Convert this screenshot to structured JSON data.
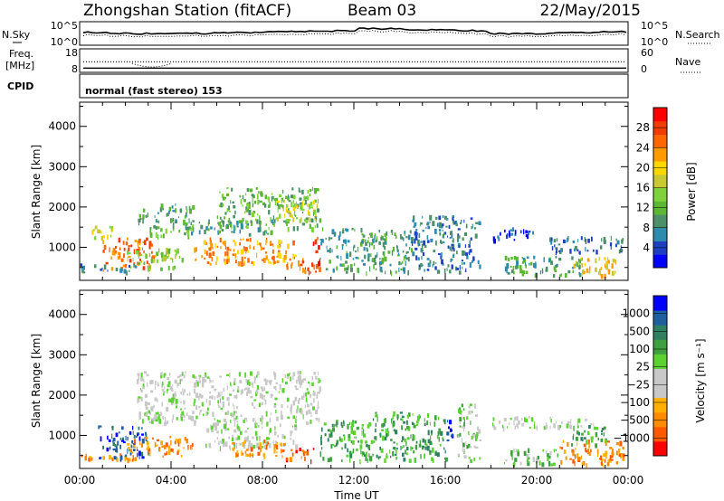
{
  "header": {
    "station_title": "Zhongshan Station (fitACF)",
    "beam": "Beam 03",
    "date": "22/May/2015"
  },
  "strip": {
    "nsky_label": "N.Sky",
    "nsearch_label": "N.Search",
    "freq_label": "Freq.",
    "freq_unit": "[MHz]",
    "nave_label": "Nave",
    "cpid_label": "CPID",
    "cpid_value": "normal (fast stereo) 153",
    "noise_ticks_left": [
      "10^5",
      "10^0"
    ],
    "noise_ticks_right": [
      "10^5",
      "10^0"
    ],
    "freq_ticks": [
      "18",
      "8"
    ],
    "nave_ticks": [
      "60",
      "0"
    ],
    "freq_dotted_mhz": 12.5,
    "freq_solid_mhz": 9.8,
    "noise_level_log": 2.2
  },
  "chart_data": [
    {
      "type": "heatmap",
      "name": "power-panel",
      "ylabel": "Slant Range [km]",
      "xlabel": "",
      "x_ticks": [
        "00:00",
        "04:00",
        "08:00",
        "12:00",
        "16:00",
        "20:00",
        "00:00"
      ],
      "x_range_hours": [
        0,
        24
      ],
      "y_ticks": [
        1000,
        2000,
        3000,
        4000
      ],
      "y_range_km": [
        180,
        4600
      ],
      "colorbar": {
        "label": "Power [dB]",
        "ticks": [
          "4",
          "8",
          "12",
          "16",
          "20",
          "24",
          "28"
        ],
        "range": [
          0,
          32
        ],
        "colors": [
          "#0000ff",
          "#1e3fbf",
          "#2e8bb0",
          "#4b9068",
          "#5cb832",
          "#7fd23c",
          "#c8c832",
          "#ffd700",
          "#ff9b00",
          "#ff6600",
          "#f03c00",
          "#ff0000"
        ]
      },
      "regions": [
        {
          "t0": 1.0,
          "t1": 3.2,
          "r0": 450,
          "r1": 1250,
          "value": 26
        },
        {
          "t0": 0.0,
          "t1": 2.5,
          "r0": 400,
          "r1": 600,
          "value": 6
        },
        {
          "t0": 0.5,
          "t1": 1.5,
          "r0": 1200,
          "r1": 1600,
          "value": 18
        },
        {
          "t0": 2.0,
          "t1": 4.5,
          "r0": 500,
          "r1": 1000,
          "value": 14
        },
        {
          "t0": 2.5,
          "t1": 5.0,
          "r0": 1600,
          "r1": 2100,
          "value": 10
        },
        {
          "t0": 3.0,
          "t1": 5.0,
          "r0": 1300,
          "r1": 1600,
          "value": 13
        },
        {
          "t0": 4.5,
          "t1": 8.5,
          "r0": 1350,
          "r1": 1700,
          "value": 9
        },
        {
          "t0": 5.0,
          "t1": 9.5,
          "r0": 600,
          "r1": 1250,
          "value": 22
        },
        {
          "t0": 6.0,
          "t1": 10.5,
          "r0": 1500,
          "r1": 2500,
          "value": 11
        },
        {
          "t0": 8.5,
          "t1": 10.5,
          "r0": 1700,
          "r1": 2200,
          "value": 17
        },
        {
          "t0": 9.0,
          "t1": 10.4,
          "r0": 400,
          "r1": 800,
          "value": 25
        },
        {
          "t0": 10.2,
          "t1": 10.5,
          "r0": 500,
          "r1": 1300,
          "value": 27
        },
        {
          "t0": 10.5,
          "t1": 14.5,
          "r0": 400,
          "r1": 1500,
          "value": 8
        },
        {
          "t0": 14.5,
          "t1": 17.5,
          "r0": 400,
          "r1": 1800,
          "value": 7
        },
        {
          "t0": 18.0,
          "t1": 20.0,
          "r0": 1200,
          "r1": 1500,
          "value": 5
        },
        {
          "t0": 18.5,
          "t1": 22.0,
          "r0": 300,
          "r1": 800,
          "value": 9
        },
        {
          "t0": 20.5,
          "t1": 23.8,
          "r0": 900,
          "r1": 1300,
          "value": 6
        },
        {
          "t0": 21.5,
          "t1": 23.5,
          "r0": 300,
          "r1": 800,
          "value": 20
        }
      ]
    },
    {
      "type": "heatmap",
      "name": "velocity-panel",
      "ylabel": "Slant Range [km]",
      "xlabel": "Time UT",
      "x_ticks": [
        "00:00",
        "04:00",
        "08:00",
        "12:00",
        "16:00",
        "20:00",
        "00:00"
      ],
      "x_range_hours": [
        0,
        24
      ],
      "y_ticks": [
        1000,
        2000,
        3000,
        4000
      ],
      "y_range_km": [
        180,
        4600
      ],
      "colorbar": {
        "label": "Velocity [m s⁻¹]",
        "ticks": [
          "1000",
          "500",
          "100",
          "25",
          "−25",
          "−100",
          "−500",
          "−1000"
        ],
        "colors": [
          "#ff0000",
          "#ff5a00",
          "#ff8c00",
          "#ffb000",
          "#c8c8c8",
          "#c8c8c8",
          "#5cd232",
          "#3fa040",
          "#2e8060",
          "#1e5fa0",
          "#0000ff"
        ]
      },
      "regions": [
        {
          "t0": 0.8,
          "t1": 3.0,
          "r0": 450,
          "r1": 1250,
          "value": 9
        },
        {
          "t0": 0.0,
          "t1": 2.5,
          "r0": 400,
          "r1": 600,
          "value": 2
        },
        {
          "t0": 2.0,
          "t1": 5.0,
          "r0": 500,
          "r1": 1000,
          "value": 2
        },
        {
          "t0": 2.5,
          "t1": 10.5,
          "r0": 1300,
          "r1": 2600,
          "value": 5
        },
        {
          "t0": 5.5,
          "t1": 9.5,
          "r0": 700,
          "r1": 1300,
          "value": 5
        },
        {
          "t0": 6.5,
          "t1": 9.0,
          "r0": 500,
          "r1": 900,
          "value": 2
        },
        {
          "t0": 9.0,
          "t1": 10.4,
          "r0": 400,
          "r1": 700,
          "value": 1
        },
        {
          "t0": 10.5,
          "t1": 12.5,
          "r0": 400,
          "r1": 1400,
          "value": 7
        },
        {
          "t0": 12.5,
          "t1": 16.0,
          "r0": 400,
          "r1": 1600,
          "value": 7
        },
        {
          "t0": 16.0,
          "t1": 16.4,
          "r0": 800,
          "r1": 1400,
          "value": 10
        },
        {
          "t0": 16.5,
          "t1": 17.5,
          "r0": 400,
          "r1": 1800,
          "value": 6
        },
        {
          "t0": 18.0,
          "t1": 22.5,
          "r0": 1200,
          "r1": 1500,
          "value": 5
        },
        {
          "t0": 18.5,
          "t1": 21.0,
          "r0": 300,
          "r1": 700,
          "value": 6
        },
        {
          "t0": 21.0,
          "t1": 23.8,
          "r0": 300,
          "r1": 900,
          "value": 2
        },
        {
          "t0": 21.5,
          "t1": 23.0,
          "r0": 800,
          "r1": 1300,
          "value": 7
        }
      ]
    }
  ]
}
